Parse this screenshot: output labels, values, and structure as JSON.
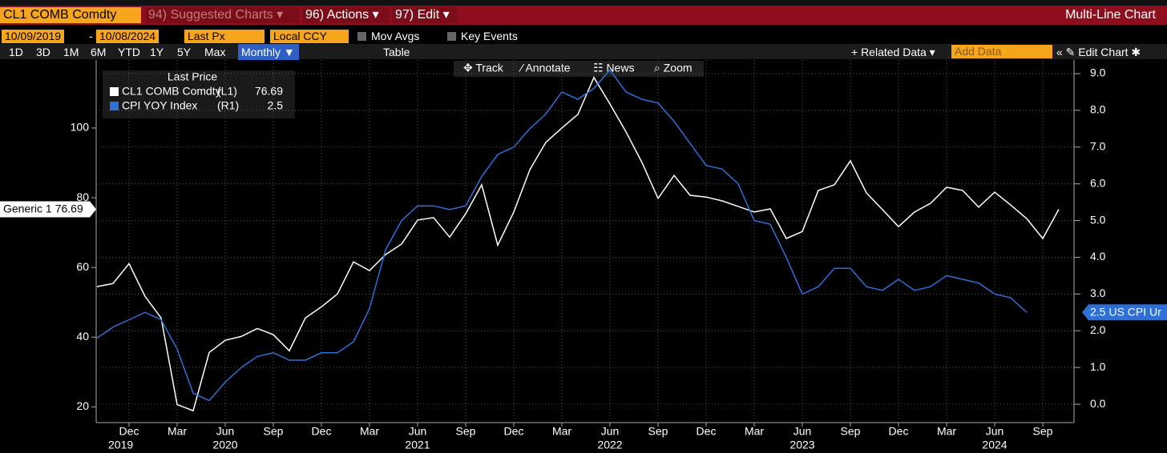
{
  "ui": {
    "security": "CL1 COMB Comdty",
    "menu": [
      "94) Suggested Charts ▾",
      "96) Actions ▾",
      "97) Edit ▾"
    ],
    "chart_kind": "Multi-Line Chart",
    "start_date": "10/09/2019",
    "date_sep": "-",
    "end_date": "10/08/2024",
    "field": "Last Px",
    "currency": "Local CCY",
    "mov_avgs": "Mov Avgs",
    "key_events": "Key Events",
    "periods": [
      "1D",
      "3D",
      "1M",
      "6M",
      "YTD",
      "1Y",
      "5Y",
      "Max"
    ],
    "frequency": "Monthly ▼",
    "table": "Table",
    "related_data": "+ Related Data ▾",
    "add_data": "Add Data",
    "edit_chart": "« ✎ Edit Chart ✱",
    "tools": [
      "✥ Track",
      "⁄ Annotate",
      "☷ News",
      "⌕ Zoom"
    ]
  },
  "chart_data": {
    "type": "line",
    "legend_title": "Last Price",
    "categories": [
      null,
      null,
      "Dec",
      null,
      null,
      "Mar",
      null,
      null,
      "Jun",
      null,
      null,
      "Sep",
      null,
      null,
      "Dec",
      null,
      null,
      "Mar",
      null,
      null,
      "Jun",
      null,
      null,
      "Sep",
      null,
      null,
      "Dec",
      null,
      null,
      "Mar",
      null,
      null,
      "Jun",
      null,
      null,
      "Sep",
      null,
      null,
      "Dec",
      null,
      null,
      "Mar",
      null,
      null,
      "Jun",
      null,
      null,
      "Sep",
      null,
      null,
      "Dec",
      null,
      null,
      "Mar",
      null,
      null,
      "Jun",
      null,
      null,
      "Sep",
      null
    ],
    "year_categories": [
      null,
      null,
      "2019",
      null,
      null,
      null,
      null,
      null,
      "2020",
      null,
      null,
      null,
      null,
      null,
      null,
      null,
      null,
      null,
      null,
      null,
      "2021",
      null,
      null,
      null,
      null,
      null,
      null,
      null,
      null,
      null,
      null,
      null,
      "2022",
      null,
      null,
      null,
      null,
      null,
      null,
      null,
      null,
      null,
      null,
      null,
      "2023",
      null,
      null,
      null,
      null,
      null,
      null,
      null,
      null,
      null,
      null,
      null,
      "2024",
      null,
      null,
      null,
      null
    ],
    "series": [
      {
        "name": "CL1 COMB Comdty",
        "axis_tag": "(L1)",
        "tag_name": "Generic 1",
        "color": "#ffffff",
        "axis": "y",
        "values": [
          54.5,
          55.4,
          61.1,
          51.7,
          45.5,
          20.7,
          18.9,
          35.6,
          39.1,
          40.2,
          42.5,
          40.7,
          36.1,
          45.5,
          48.7,
          52.4,
          61.6,
          59.1,
          63.7,
          66.7,
          73.6,
          74.3,
          68.7,
          75.4,
          83.7,
          66.4,
          75.9,
          88.0,
          95.9,
          100.0,
          103.9,
          114.5,
          106.9,
          98.9,
          90.1,
          79.8,
          86.4,
          80.7,
          80.2,
          79.1,
          77.5,
          75.9,
          76.8,
          68.3,
          70.3,
          82.1,
          83.7,
          90.6,
          81.4,
          76.6,
          71.7,
          75.9,
          78.4,
          83.0,
          82.1,
          77.3,
          81.6,
          77.9,
          74.0,
          68.3,
          76.69
        ]
      },
      {
        "name": "CPI YOY Index",
        "axis_tag": "(R1)",
        "tag_name": "US CPI Ur",
        "color": "#2f6fd8",
        "axis": "y2",
        "values": [
          1.8,
          2.1,
          2.3,
          2.5,
          2.3,
          1.5,
          0.3,
          0.1,
          0.6,
          1.0,
          1.3,
          1.4,
          1.2,
          1.2,
          1.4,
          1.4,
          1.7,
          2.6,
          4.2,
          5.0,
          5.4,
          5.4,
          5.3,
          5.4,
          6.2,
          6.8,
          7.0,
          7.5,
          7.9,
          8.5,
          8.3,
          8.6,
          9.1,
          8.5,
          8.3,
          8.2,
          7.7,
          7.1,
          6.5,
          6.4,
          6.0,
          5.0,
          4.9,
          4.0,
          3.0,
          3.2,
          3.7,
          3.7,
          3.2,
          3.1,
          3.4,
          3.1,
          3.2,
          3.5,
          3.4,
          3.3,
          3.0,
          2.9,
          2.5,
          null,
          null
        ]
      }
    ],
    "ylim": [
      15.5,
      119.5
    ],
    "yticks": [
      20,
      40,
      60,
      80,
      100
    ],
    "y2lim": [
      -0.5,
      9.37
    ],
    "y2ticks": [
      {
        "value": 0,
        "label": "0.0"
      },
      {
        "value": 1,
        "label": "1.0"
      },
      {
        "value": 2,
        "label": "2.0"
      },
      {
        "value": 3,
        "label": "3.0"
      },
      {
        "value": 4,
        "label": "4.0"
      },
      {
        "value": 5,
        "label": "5.0"
      },
      {
        "value": 6,
        "label": "6.0"
      },
      {
        "value": 7,
        "label": "7.0"
      },
      {
        "value": 8,
        "label": "8.0"
      },
      {
        "value": 9,
        "label": "9.0"
      }
    ],
    "grid": true
  }
}
